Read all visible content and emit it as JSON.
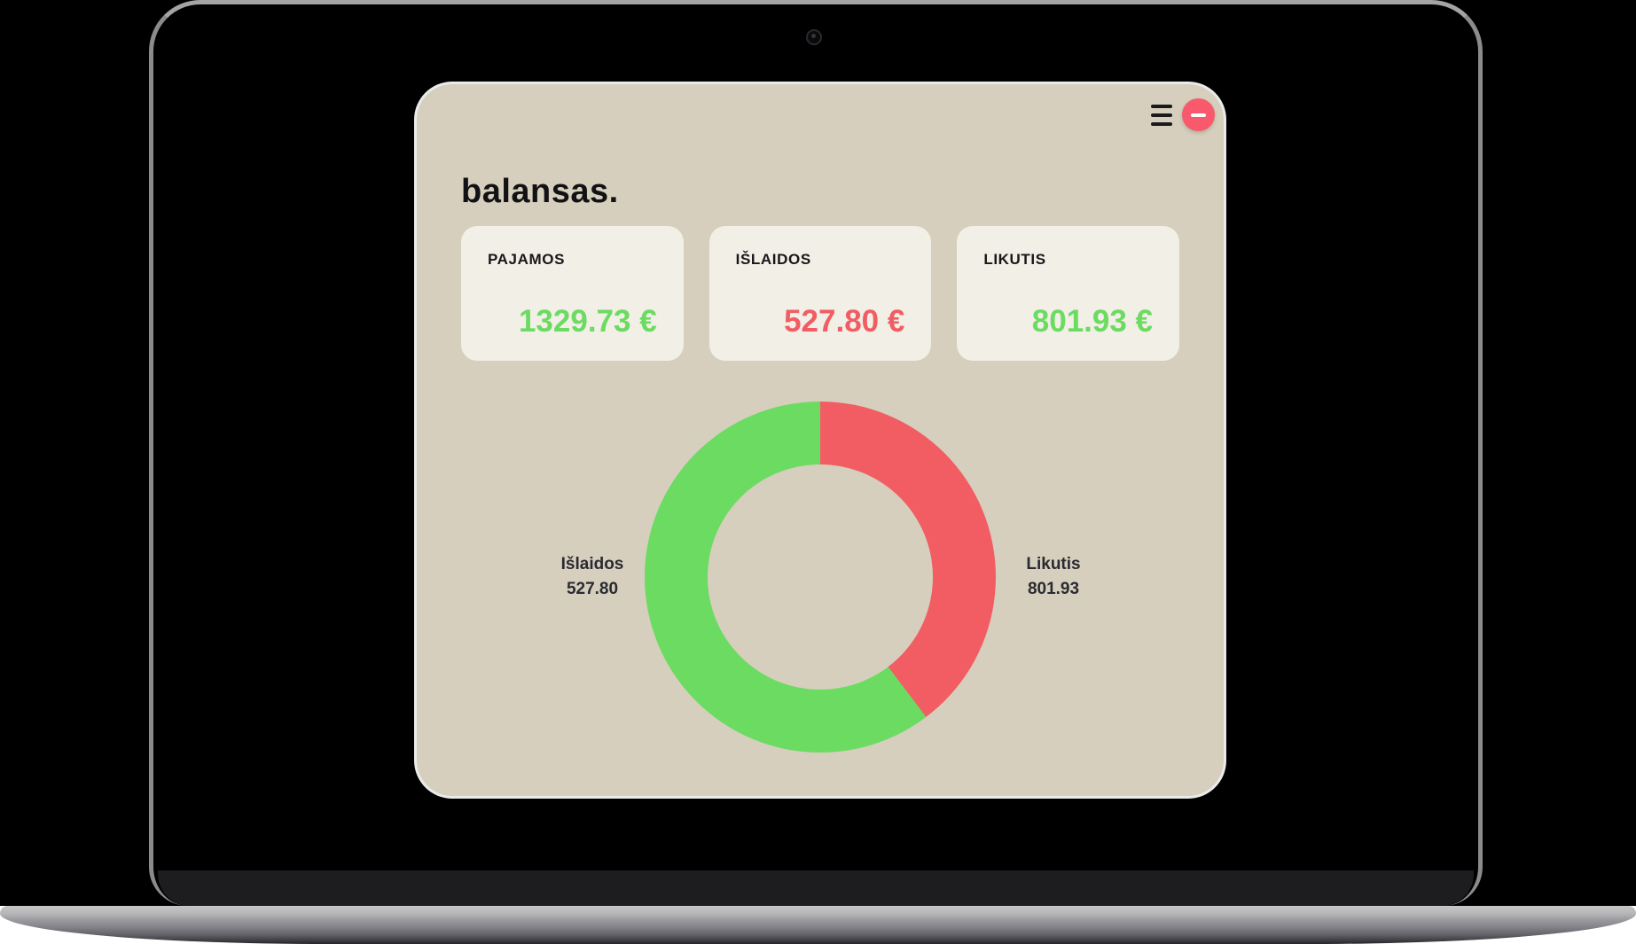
{
  "app": {
    "logo_text": "balansas.",
    "colors": {
      "background_beige": "#d6cfbd",
      "card_cream": "#f2efe6",
      "green": "#6cdb62",
      "red": "#f25d63",
      "close_red": "#f9596c",
      "text_dark": "#17171a"
    }
  },
  "header": {
    "icons": {
      "menu": "hamburger-icon",
      "minimize": "minus-icon"
    }
  },
  "cards": [
    {
      "label": "PAJAMOS",
      "value": "1329.73 €",
      "value_color": "#6cdb62"
    },
    {
      "label": "IŠLAIDOS",
      "value": "527.80 €",
      "value_color": "#f25d63"
    },
    {
      "label": "LIKUTIS",
      "value": "801.93 €",
      "value_color": "#6cdb62"
    }
  ],
  "chart_data": {
    "type": "pie",
    "style": "donut",
    "start_angle_deg": 0,
    "direction": "clockwise",
    "total": 1329.73,
    "slices": [
      {
        "name": "Išlaidos",
        "value": 527.8,
        "color": "#f25d63"
      },
      {
        "name": "Likutis",
        "value": 801.93,
        "color": "#6cdb62"
      }
    ],
    "outer_labels": [
      {
        "position": "left",
        "lines": [
          "Išlaidos",
          "527.80"
        ]
      },
      {
        "position": "right",
        "lines": [
          "Likutis",
          "801.93"
        ]
      }
    ]
  }
}
